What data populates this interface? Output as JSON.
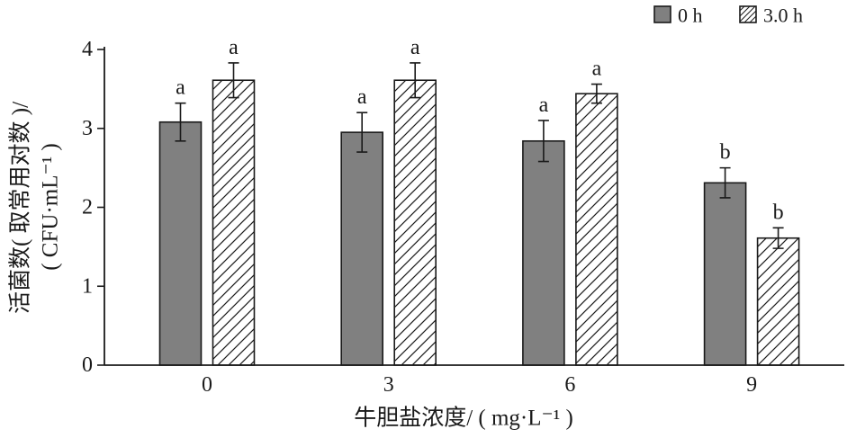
{
  "chart_data": {
    "type": "bar",
    "categories": [
      "0",
      "3",
      "6",
      "9"
    ],
    "series": [
      {
        "name": "0 h",
        "values": [
          3.08,
          2.95,
          2.84,
          2.31
        ],
        "error": [
          0.24,
          0.25,
          0.26,
          0.19
        ],
        "letters": [
          "a",
          "a",
          "a",
          "b"
        ],
        "color": "#808080",
        "hatched": false
      },
      {
        "name": "3.0 h",
        "values": [
          3.61,
          3.61,
          3.44,
          1.61
        ],
        "error": [
          0.22,
          0.22,
          0.12,
          0.13
        ],
        "letters": [
          "a",
          "a",
          "a",
          "b"
        ],
        "color": "#ffffff",
        "hatched": true
      }
    ],
    "xlabel": "牛胆盐浓度/ ( mg·L⁻¹ )",
    "ylabel": [
      "活菌数( 取常用对数 )/",
      "( CFU·mL⁻¹ )"
    ],
    "ylim": [
      0,
      4
    ],
    "yticks": [
      0,
      1,
      2,
      3,
      4
    ],
    "grid": false,
    "error_bars": true,
    "legend_position": "top-right"
  }
}
